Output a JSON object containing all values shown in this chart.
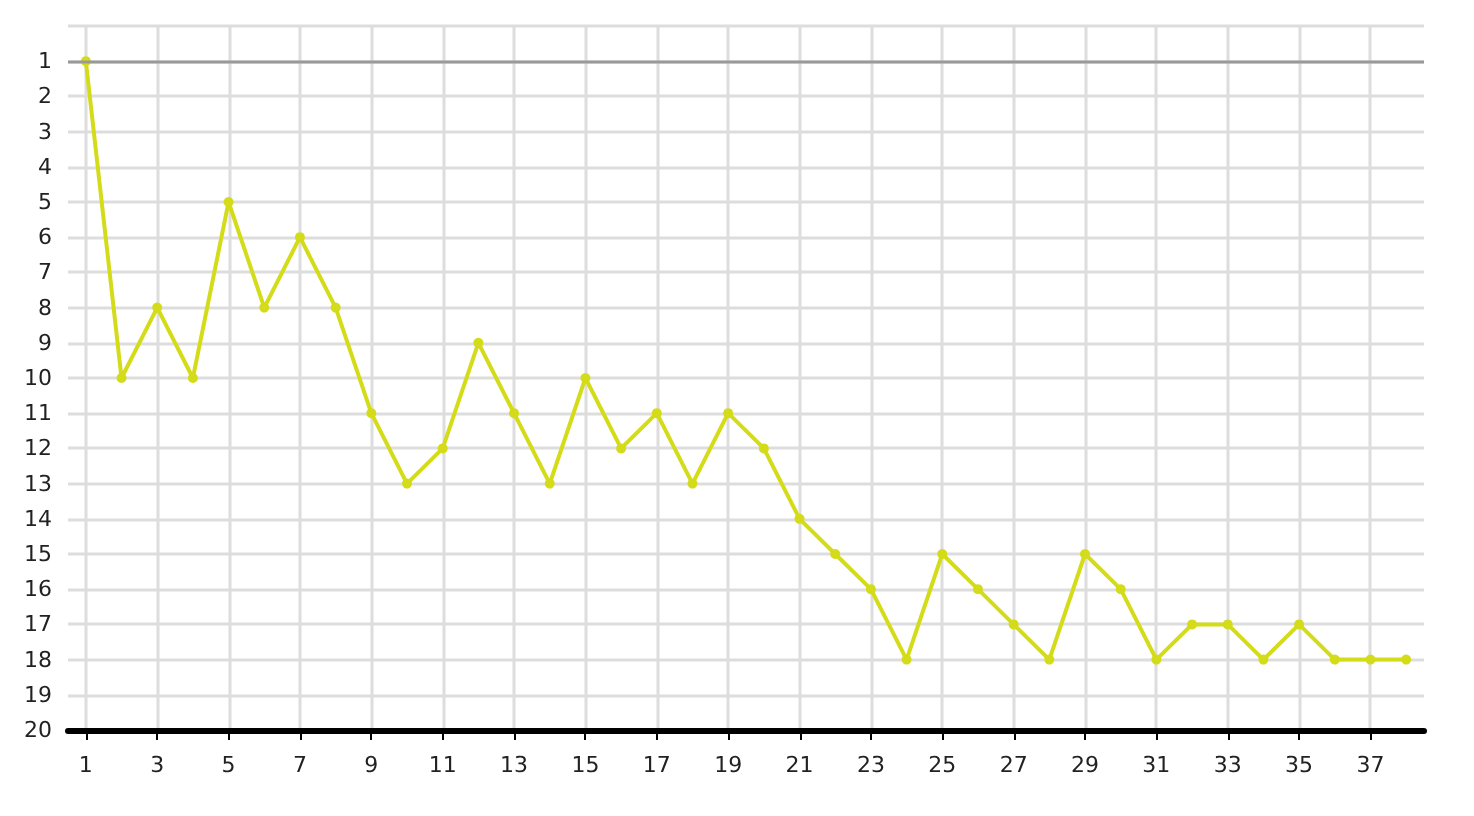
{
  "chart_data": {
    "type": "line",
    "x": [
      1,
      2,
      3,
      4,
      5,
      6,
      7,
      8,
      9,
      10,
      11,
      12,
      13,
      14,
      15,
      16,
      17,
      18,
      19,
      20,
      21,
      22,
      23,
      24,
      25,
      26,
      27,
      28,
      29,
      30,
      31,
      32,
      33,
      34,
      35,
      36,
      37,
      38
    ],
    "series": [
      {
        "color": "#d4dc1a",
        "values": [
          1,
          10,
          8,
          10,
          5,
          8,
          6,
          8,
          11,
          13,
          12,
          9,
          11,
          13,
          10,
          12,
          11,
          13,
          11,
          12,
          14,
          15,
          16,
          18,
          15,
          16,
          17,
          18,
          15,
          16,
          18,
          17,
          17,
          18,
          17,
          18,
          18,
          18
        ]
      }
    ],
    "xlim": [
      0.5,
      38.5
    ],
    "xticks": [
      1,
      3,
      5,
      7,
      9,
      11,
      13,
      15,
      17,
      19,
      21,
      23,
      25,
      27,
      29,
      31,
      33,
      35,
      37
    ],
    "ylim": [
      20,
      0
    ],
    "yticks": [
      {
        "value": 0,
        "label": null
      },
      1,
      2,
      3,
      4,
      5,
      6,
      7,
      8,
      9,
      10,
      11,
      12,
      13,
      14,
      15,
      16,
      17,
      18,
      19,
      20
    ],
    "ref_lines": [
      {
        "axis": "y",
        "value": 1,
        "color": "#999999"
      }
    ],
    "grid": true,
    "marker": "circle",
    "line_style": "solid"
  }
}
